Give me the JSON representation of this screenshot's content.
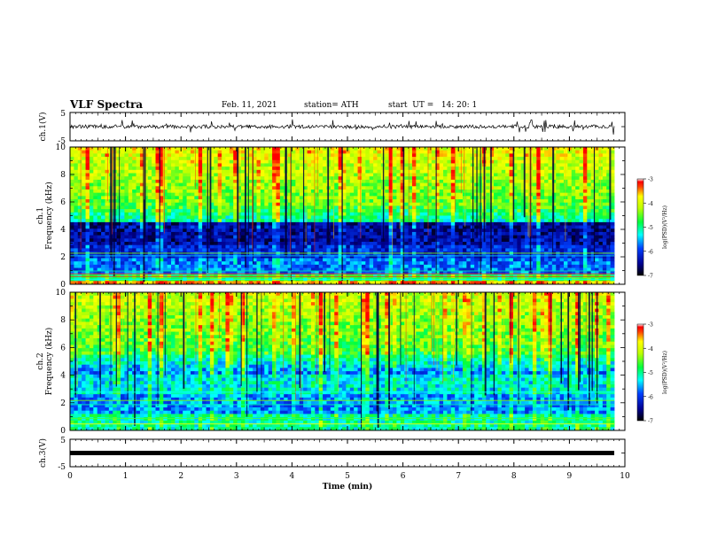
{
  "header": {
    "title": "VLF Spectra",
    "date": "Feb. 11, 2021",
    "station": "station= ATH",
    "start": "start  UT =   14: 20: 1"
  },
  "chart_data": [
    {
      "type": "line",
      "panel": "ch1-waveform",
      "ylabel": "ch.1(V)",
      "ylim": [
        -5,
        5
      ],
      "yticks": [
        "5",
        "-5"
      ],
      "xlim": [
        0,
        10
      ],
      "description_level": 0.0
    },
    {
      "type": "heatmap",
      "panel": "ch1-spectrogram",
      "ylabel_channel": "ch.1",
      "ylabel": "Frequency (kHz)",
      "ylim": [
        0,
        10
      ],
      "yticks": [
        "0",
        "2",
        "4",
        "6",
        "8",
        "10"
      ],
      "xlim": [
        0,
        10
      ],
      "colorbar": {
        "label": "log(PSD)(V²/Hz)",
        "range": [
          -7,
          -3
        ],
        "ticks": [
          "-3",
          "-4",
          "-5",
          "-6",
          "-7"
        ]
      }
    },
    {
      "type": "heatmap",
      "panel": "ch2-spectrogram",
      "ylabel_channel": "ch.2",
      "ylabel": "Frequency (kHz)",
      "ylim": [
        0,
        10
      ],
      "yticks": [
        "0",
        "2",
        "4",
        "6",
        "8",
        "10"
      ],
      "xlim": [
        0,
        10
      ],
      "colorbar": {
        "label": "log(PSD)(V²/Hz)",
        "range": [
          -7,
          -3
        ],
        "ticks": [
          "-3",
          "-4",
          "-5",
          "-6",
          "-7"
        ]
      }
    },
    {
      "type": "line",
      "panel": "ch3-waveform",
      "ylabel": "ch.3(V)",
      "ylim": [
        -5,
        5
      ],
      "yticks": [
        "5",
        "-5"
      ],
      "xlim": [
        0,
        10
      ],
      "xlabel": "Time (min)",
      "xticks": [
        "0",
        "1",
        "2",
        "3",
        "4",
        "5",
        "6",
        "7",
        "8",
        "9",
        "10"
      ],
      "description_level": 0.0
    }
  ]
}
